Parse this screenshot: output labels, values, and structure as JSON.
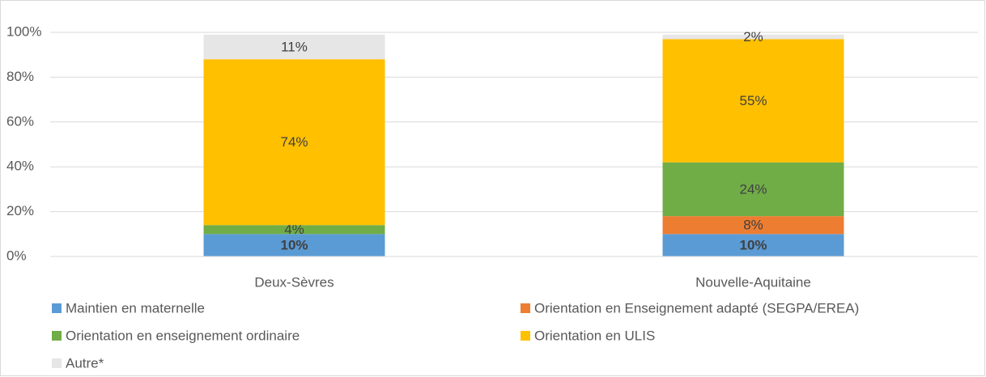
{
  "chart_data": {
    "type": "stacked_bar",
    "categories": [
      "Deux-Sèvres",
      "Nouvelle-Aquitaine"
    ],
    "series": [
      {
        "name": "Maintien en maternelle",
        "color": "#5b9bd5",
        "values": [
          10,
          10
        ],
        "value_labels": [
          "10%",
          "10%"
        ]
      },
      {
        "name": "Orientation en Enseignement adapté (SEGPA/EREA)",
        "color": "#ed7d31",
        "values": [
          null,
          8
        ],
        "value_labels": [
          null,
          "8%"
        ]
      },
      {
        "name": "Orientation en enseignement ordinaire",
        "color": "#70ad47",
        "values": [
          4,
          24
        ],
        "value_labels": [
          "4%",
          "24%"
        ]
      },
      {
        "name": "Orientation en ULIS",
        "color": "#ffc000",
        "values": [
          74,
          55
        ],
        "value_labels": [
          "74%",
          "55%"
        ]
      },
      {
        "name": "Autre*",
        "color": "#e7e6e6",
        "values": [
          11,
          2
        ],
        "value_labels": [
          "11%",
          "2%"
        ]
      }
    ],
    "ylim": [
      0,
      100
    ],
    "yticks": [
      {
        "value": 0,
        "label": "0%"
      },
      {
        "value": 20,
        "label": "20%"
      },
      {
        "value": 40,
        "label": "40%"
      },
      {
        "value": 60,
        "label": "60%"
      },
      {
        "value": 80,
        "label": "80%"
      },
      {
        "value": 100,
        "label": "100%"
      }
    ],
    "grid": true,
    "legend": "bottom"
  }
}
